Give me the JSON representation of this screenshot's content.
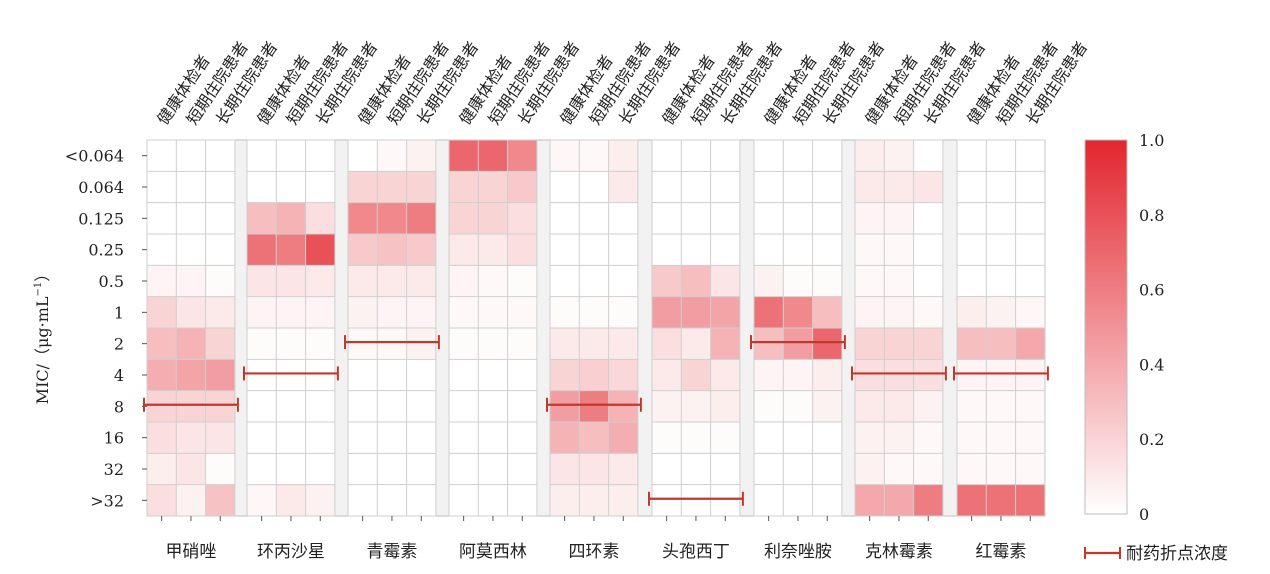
{
  "chart_data": {
    "type": "heatmap",
    "ylabel": "MIC/（μg·mL",
    "ylabel_sup": "−1",
    "ylabel_close": "）",
    "y_categories": [
      "<0.064",
      "0.064",
      "0.125",
      "0.25",
      "0.5",
      "1",
      "2",
      "4",
      "8",
      "16",
      "32",
      ">32"
    ],
    "groups": [
      "健康体检者",
      "短期住院患者",
      "长期住院患者"
    ],
    "colorbar": {
      "min": 0,
      "max": 1.0,
      "low_color": "#ffffff",
      "high_color": "#e3262e",
      "ticks": [
        "0",
        "0.2",
        "0.4",
        "0.6",
        "0.8",
        "1.0"
      ]
    },
    "breakpoint_color": "#c0392b",
    "legend_label": "耐药折点浓度",
    "drugs": [
      {
        "name": "甲硝唑",
        "breakpoint": "8",
        "values": [
          [
            0,
            0,
            0
          ],
          [
            0,
            0,
            0
          ],
          [
            0,
            0,
            0
          ],
          [
            0,
            0,
            0
          ],
          [
            0.05,
            0.05,
            0.02
          ],
          [
            0.2,
            0.12,
            0.1
          ],
          [
            0.3,
            0.35,
            0.2
          ],
          [
            0.38,
            0.42,
            0.45
          ],
          [
            0.2,
            0.2,
            0.2
          ],
          [
            0.15,
            0.12,
            0.12
          ],
          [
            0.08,
            0.12,
            0.02
          ],
          [
            0.15,
            0.06,
            0.28
          ]
        ]
      },
      {
        "name": "环丙沙星",
        "breakpoint": "4",
        "values": [
          [
            0,
            0,
            0
          ],
          [
            0,
            0,
            0
          ],
          [
            0.3,
            0.35,
            0.15
          ],
          [
            0.65,
            0.6,
            0.8
          ],
          [
            0.12,
            0.12,
            0.1
          ],
          [
            0.05,
            0.05,
            0.05
          ],
          [
            0.02,
            0.02,
            0.02
          ],
          [
            0,
            0,
            0
          ],
          [
            0,
            0,
            0
          ],
          [
            0,
            0,
            0
          ],
          [
            0,
            0,
            0
          ],
          [
            0.04,
            0.1,
            0.06
          ]
        ]
      },
      {
        "name": "青霉素",
        "breakpoint": "2",
        "values": [
          [
            0,
            0.03,
            0.06
          ],
          [
            0.2,
            0.2,
            0.2
          ],
          [
            0.55,
            0.55,
            0.6
          ],
          [
            0.25,
            0.28,
            0.25
          ],
          [
            0.1,
            0.1,
            0.1
          ],
          [
            0.06,
            0.05,
            0.05
          ],
          [
            0.03,
            0.03,
            0.06
          ],
          [
            0,
            0,
            0
          ],
          [
            0,
            0,
            0
          ],
          [
            0,
            0,
            0
          ],
          [
            0,
            0,
            0
          ],
          [
            0,
            0,
            0
          ]
        ]
      },
      {
        "name": "阿莫西林",
        "breakpoint": "",
        "values": [
          [
            0.7,
            0.7,
            0.55
          ],
          [
            0.2,
            0.2,
            0.25
          ],
          [
            0.2,
            0.2,
            0.15
          ],
          [
            0.1,
            0.1,
            0.15
          ],
          [
            0.05,
            0.03,
            0.02
          ],
          [
            0.03,
            0.03,
            0.03
          ],
          [
            0.02,
            0.02,
            0.02
          ],
          [
            0,
            0,
            0
          ],
          [
            0,
            0,
            0
          ],
          [
            0,
            0,
            0
          ],
          [
            0,
            0,
            0
          ],
          [
            0,
            0,
            0
          ]
        ]
      },
      {
        "name": "四环素",
        "breakpoint": "8",
        "values": [
          [
            0.04,
            0.03,
            0.08
          ],
          [
            0,
            0,
            0.1
          ],
          [
            0,
            0,
            0
          ],
          [
            0,
            0,
            0
          ],
          [
            0,
            0,
            0
          ],
          [
            0.02,
            0.02,
            0.02
          ],
          [
            0.1,
            0.1,
            0.1
          ],
          [
            0.2,
            0.22,
            0.18
          ],
          [
            0.45,
            0.6,
            0.35
          ],
          [
            0.35,
            0.3,
            0.38
          ],
          [
            0.12,
            0.12,
            0.1
          ],
          [
            0.08,
            0.08,
            0.08
          ]
        ]
      },
      {
        "name": "头孢西丁",
        "breakpoint": ">32",
        "values": [
          [
            0,
            0,
            0
          ],
          [
            0,
            0,
            0
          ],
          [
            0,
            0,
            0
          ],
          [
            0,
            0,
            0
          ],
          [
            0.25,
            0.3,
            0.12
          ],
          [
            0.45,
            0.45,
            0.42
          ],
          [
            0.15,
            0.1,
            0.35
          ],
          [
            0.1,
            0.2,
            0.1
          ],
          [
            0.06,
            0.06,
            0.08
          ],
          [
            0.02,
            0.02,
            0.02
          ],
          [
            0,
            0,
            0
          ],
          [
            0,
            0,
            0
          ]
        ]
      },
      {
        "name": "利奈唑胺",
        "breakpoint": "2",
        "values": [
          [
            0,
            0,
            0
          ],
          [
            0,
            0,
            0
          ],
          [
            0,
            0,
            0
          ],
          [
            0,
            0,
            0
          ],
          [
            0.06,
            0.02,
            0.02
          ],
          [
            0.65,
            0.55,
            0.3
          ],
          [
            0.3,
            0.45,
            0.7
          ],
          [
            0.05,
            0.05,
            0.08
          ],
          [
            0.02,
            0.02,
            0.06
          ],
          [
            0,
            0,
            0
          ],
          [
            0,
            0,
            0
          ],
          [
            0,
            0,
            0
          ]
        ]
      },
      {
        "name": "克林霉素",
        "breakpoint": "4",
        "values": [
          [
            0.08,
            0.06,
            0
          ],
          [
            0.1,
            0.1,
            0.12
          ],
          [
            0.05,
            0.05,
            0
          ],
          [
            0.03,
            0.03,
            0
          ],
          [
            0.03,
            0.03,
            0
          ],
          [
            0.05,
            0.05,
            0.03
          ],
          [
            0.2,
            0.2,
            0.2
          ],
          [
            0.15,
            0.15,
            0.15
          ],
          [
            0.1,
            0.1,
            0.06
          ],
          [
            0.06,
            0.06,
            0.03
          ],
          [
            0.06,
            0.03,
            0.03
          ],
          [
            0.4,
            0.4,
            0.6
          ]
        ]
      },
      {
        "name": "红霉素",
        "breakpoint": "4",
        "values": [
          [
            0,
            0,
            0
          ],
          [
            0,
            0,
            0
          ],
          [
            0,
            0,
            0
          ],
          [
            0,
            0,
            0
          ],
          [
            0,
            0,
            0
          ],
          [
            0.08,
            0.06,
            0.04
          ],
          [
            0.3,
            0.3,
            0.4
          ],
          [
            0.05,
            0.05,
            0.05
          ],
          [
            0.03,
            0.03,
            0.03
          ],
          [
            0.03,
            0.03,
            0.03
          ],
          [
            0.03,
            0.03,
            0.03
          ],
          [
            0.65,
            0.65,
            0.65
          ]
        ]
      }
    ]
  }
}
